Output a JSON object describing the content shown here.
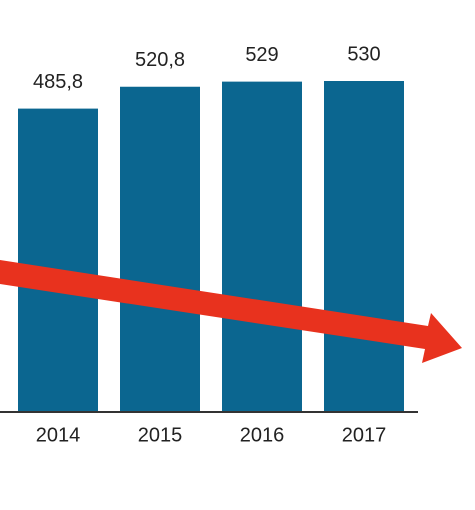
{
  "chart_data": {
    "type": "bar",
    "categories": [
      "2014",
      "2015",
      "2016",
      "2017"
    ],
    "values": [
      485.8,
      520.8,
      529,
      530
    ],
    "value_labels": [
      "485,8",
      "520,8",
      "529",
      "530"
    ],
    "color": "#0b6690"
  }
}
